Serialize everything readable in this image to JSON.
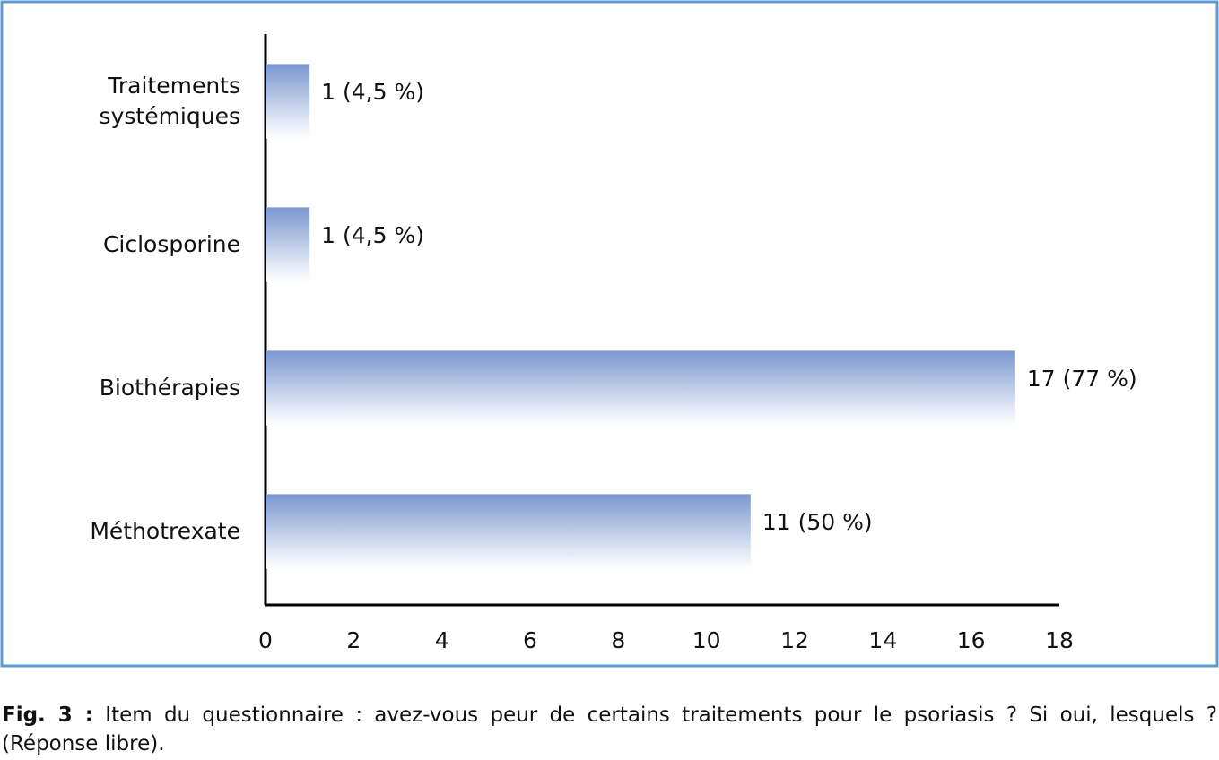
{
  "chart_data": {
    "type": "bar",
    "orientation": "horizontal",
    "categories": [
      "Traitements systémiques",
      "Ciclosporine",
      "Biothérapies",
      "Méthotrexate"
    ],
    "values": [
      1,
      1,
      17,
      11
    ],
    "value_labels": [
      "1 (4,5 %)",
      "1 (4,5 %)",
      "17 (77 %)",
      "11 (50 %)"
    ],
    "color": "#7b98d0",
    "xlim": [
      0,
      18
    ],
    "xticks": [
      0,
      2,
      4,
      6,
      8,
      10,
      12,
      14,
      16,
      18
    ],
    "grid": false
  },
  "caption": {
    "label": "Fig. 3 :",
    "text": "Item du questionnaire : avez-vous peur de certains traitements pour le psoriasis ? Si oui, lesquels ? (Réponse libre)."
  }
}
